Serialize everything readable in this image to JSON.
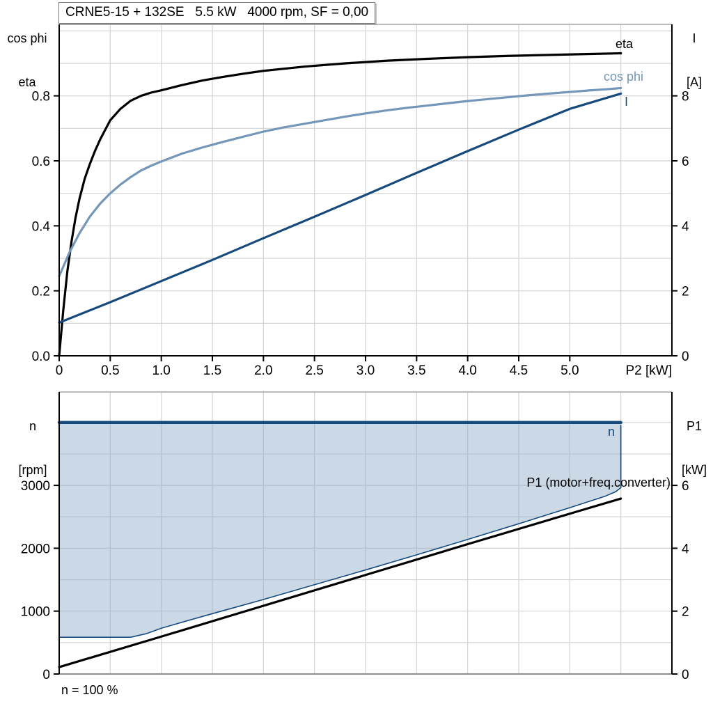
{
  "page": {
    "background": "#ffffff"
  },
  "colors": {
    "eta": "#000000",
    "cos_phi": "#7496b8",
    "current": "#164a7c",
    "n_line": "#164a7c",
    "region_fill": "#8caac8",
    "region_fill_opacity": 0.45,
    "grid": "#d3d3d3",
    "frame_gray": "#a3a3a3",
    "bottom_frame_gray": "#8f8f8f",
    "axis": "#000000",
    "text": "#000000"
  },
  "title_box": {
    "text": "CRNE5-15 + 132SE   5.5 kW   4000 rpm, SF = 0,00"
  },
  "footnote": "n = 100 %",
  "chart_data": [
    {
      "name": "motor-performance-chart",
      "type": "line",
      "title": "CRNE5-15 + 132SE 5.5 kW 4000 rpm, SF = 0,00",
      "x": {
        "label": "P2 [kW]",
        "min": 0,
        "max": 6,
        "grid_step": 0.5,
        "ticks": [
          {
            "v": 0,
            "t": "0"
          },
          {
            "v": 0.5,
            "t": "0.5"
          },
          {
            "v": 1,
            "t": "1.0"
          },
          {
            "v": 1.5,
            "t": "1.5"
          },
          {
            "v": 2,
            "t": "2.0"
          },
          {
            "v": 2.5,
            "t": "2.5"
          },
          {
            "v": 3,
            "t": "3.0"
          },
          {
            "v": 3.5,
            "t": "3.5"
          },
          {
            "v": 4,
            "t": "4.0"
          },
          {
            "v": 4.5,
            "t": "4.5"
          },
          {
            "v": 5,
            "t": "5.0"
          }
        ]
      },
      "y_left": {
        "label_lines": [
          "cos phi",
          "eta"
        ],
        "min": 0,
        "max": 1.02,
        "grid_step": 0.1,
        "ticks": [
          {
            "v": 0,
            "t": "0.0"
          },
          {
            "v": 0.2,
            "t": "0.2"
          },
          {
            "v": 0.4,
            "t": "0.4"
          },
          {
            "v": 0.6,
            "t": "0.6"
          },
          {
            "v": 0.8,
            "t": "0.8"
          }
        ]
      },
      "y_right": {
        "label_lines": [
          "I",
          "[A]"
        ],
        "min": 0,
        "max": 10.2,
        "ticks": [
          {
            "v": 0,
            "t": "0"
          },
          {
            "v": 2,
            "t": "2"
          },
          {
            "v": 4,
            "t": "4"
          },
          {
            "v": 6,
            "t": "6"
          },
          {
            "v": 8,
            "t": "8"
          }
        ]
      },
      "series": [
        {
          "name": "eta",
          "label": "eta",
          "axis": "left",
          "color_key": "eta",
          "width": 3.2,
          "points": [
            [
              0,
              0
            ],
            [
              0.04,
              0.14
            ],
            [
              0.08,
              0.26
            ],
            [
              0.12,
              0.35
            ],
            [
              0.16,
              0.425
            ],
            [
              0.2,
              0.485
            ],
            [
              0.25,
              0.545
            ],
            [
              0.3,
              0.59
            ],
            [
              0.35,
              0.63
            ],
            [
              0.4,
              0.665
            ],
            [
              0.5,
              0.725
            ],
            [
              0.6,
              0.76
            ],
            [
              0.7,
              0.785
            ],
            [
              0.8,
              0.8
            ],
            [
              0.9,
              0.81
            ],
            [
              1.0,
              0.817
            ],
            [
              1.2,
              0.833
            ],
            [
              1.4,
              0.847
            ],
            [
              1.6,
              0.858
            ],
            [
              1.8,
              0.868
            ],
            [
              2.0,
              0.877
            ],
            [
              2.4,
              0.89
            ],
            [
              2.8,
              0.9
            ],
            [
              3.2,
              0.908
            ],
            [
              3.6,
              0.914
            ],
            [
              4.0,
              0.919
            ],
            [
              4.4,
              0.923
            ],
            [
              4.8,
              0.926
            ],
            [
              5.2,
              0.929
            ],
            [
              5.5,
              0.931
            ]
          ]
        },
        {
          "name": "cos-phi",
          "label": "cos phi",
          "axis": "left",
          "color_key": "cos_phi",
          "width": 3.2,
          "points": [
            [
              0,
              0.245
            ],
            [
              0.1,
              0.318
            ],
            [
              0.2,
              0.378
            ],
            [
              0.3,
              0.428
            ],
            [
              0.4,
              0.468
            ],
            [
              0.5,
              0.5
            ],
            [
              0.6,
              0.527
            ],
            [
              0.7,
              0.55
            ],
            [
              0.8,
              0.57
            ],
            [
              0.9,
              0.585
            ],
            [
              1.0,
              0.598
            ],
            [
              1.2,
              0.622
            ],
            [
              1.4,
              0.641
            ],
            [
              1.6,
              0.658
            ],
            [
              1.8,
              0.674
            ],
            [
              2.0,
              0.69
            ],
            [
              2.2,
              0.703
            ],
            [
              2.4,
              0.714
            ],
            [
              2.6,
              0.725
            ],
            [
              2.8,
              0.736
            ],
            [
              3.0,
              0.746
            ],
            [
              3.2,
              0.755
            ],
            [
              3.4,
              0.763
            ],
            [
              3.6,
              0.77
            ],
            [
              3.8,
              0.777
            ],
            [
              4.0,
              0.784
            ],
            [
              4.2,
              0.79
            ],
            [
              4.4,
              0.796
            ],
            [
              4.6,
              0.802
            ],
            [
              4.8,
              0.807
            ],
            [
              5.0,
              0.812
            ],
            [
              5.2,
              0.817
            ],
            [
              5.35,
              0.82
            ],
            [
              5.5,
              0.824
            ]
          ]
        },
        {
          "name": "current",
          "label": "I",
          "axis": "right",
          "color_key": "current",
          "width": 3.2,
          "points": [
            [
              0,
              1.02
            ],
            [
              0.5,
              1.65
            ],
            [
              1.0,
              2.3
            ],
            [
              1.5,
              2.95
            ],
            [
              2.0,
              3.62
            ],
            [
              2.5,
              4.28
            ],
            [
              3.0,
              4.95
            ],
            [
              3.5,
              5.63
            ],
            [
              4.0,
              6.3
            ],
            [
              4.5,
              6.96
            ],
            [
              5.0,
              7.6
            ],
            [
              5.5,
              8.07
            ]
          ]
        }
      ]
    },
    {
      "name": "speed-power-chart",
      "type": "line",
      "x": {
        "label": "",
        "min": 0,
        "max": 6,
        "grid_step": 0.5,
        "ticks": []
      },
      "y_left": {
        "label_lines": [
          "n",
          "[rpm]"
        ],
        "min": 0,
        "max": 4485,
        "grid_step": 500,
        "ticks": [
          {
            "v": 0,
            "t": "0"
          },
          {
            "v": 1000,
            "t": "1000"
          },
          {
            "v": 2000,
            "t": "2000"
          },
          {
            "v": 3000,
            "t": "3000"
          }
        ]
      },
      "y_right": {
        "label_lines": [
          "P1",
          "[kW]"
        ],
        "min": 0,
        "max": 8.97,
        "ticks": [
          {
            "v": 0,
            "t": "0"
          },
          {
            "v": 2,
            "t": "2"
          },
          {
            "v": 4,
            "t": "4"
          },
          {
            "v": 6,
            "t": "6"
          }
        ]
      },
      "region": {
        "name": "speed-control-range",
        "axis": "left",
        "points": [
          [
            0,
            4000
          ],
          [
            0,
            585
          ],
          [
            0.7,
            585
          ],
          [
            0.85,
            640
          ],
          [
            1.0,
            728
          ],
          [
            1.25,
            845
          ],
          [
            1.5,
            960
          ],
          [
            1.75,
            1072
          ],
          [
            2.0,
            1185
          ],
          [
            2.5,
            1420
          ],
          [
            3.0,
            1655
          ],
          [
            3.5,
            1895
          ],
          [
            4.0,
            2140
          ],
          [
            4.5,
            2390
          ],
          [
            5.0,
            2645
          ],
          [
            5.2,
            2750
          ],
          [
            5.35,
            2830
          ],
          [
            5.45,
            2900
          ],
          [
            5.5,
            2965
          ],
          [
            5.5,
            4000
          ]
        ]
      },
      "series": [
        {
          "name": "range-boundary",
          "label": "",
          "axis": "left",
          "color_key": "n_line",
          "width": 1.6,
          "points": [
            [
              0,
              585
            ],
            [
              0.7,
              585
            ],
            [
              0.85,
              640
            ],
            [
              1.0,
              728
            ],
            [
              1.25,
              845
            ],
            [
              1.5,
              960
            ],
            [
              1.75,
              1072
            ],
            [
              2.0,
              1185
            ],
            [
              2.5,
              1420
            ],
            [
              3.0,
              1655
            ],
            [
              3.5,
              1895
            ],
            [
              4.0,
              2140
            ],
            [
              4.5,
              2390
            ],
            [
              5.0,
              2645
            ],
            [
              5.2,
              2750
            ],
            [
              5.35,
              2830
            ],
            [
              5.45,
              2900
            ],
            [
              5.5,
              2965
            ],
            [
              5.5,
              3955
            ]
          ]
        },
        {
          "name": "speed",
          "label": "n",
          "axis": "left",
          "color_key": "n_line",
          "width": 4.5,
          "points": [
            [
              0,
              4000
            ],
            [
              5.5,
              4000
            ]
          ]
        },
        {
          "name": "p1-input-power",
          "label": "P1 (motor+freq.converter)",
          "axis": "right",
          "color_key": "eta",
          "width": 3.2,
          "points": [
            [
              0,
              0.22
            ],
            [
              1.0,
              1.19
            ],
            [
              2.0,
              2.17
            ],
            [
              3.0,
              3.15
            ],
            [
              4.0,
              4.13
            ],
            [
              5.0,
              5.1
            ],
            [
              5.5,
              5.58
            ]
          ]
        }
      ],
      "footnote": "n = 100 %"
    }
  ]
}
